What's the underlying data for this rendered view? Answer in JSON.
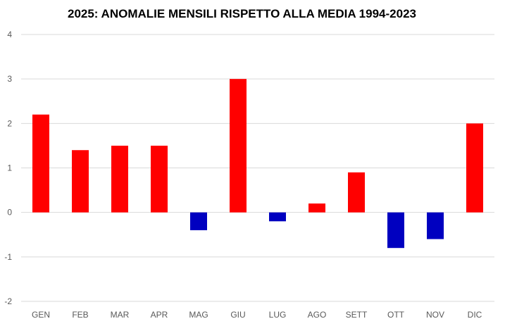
{
  "chart_data": {
    "type": "bar",
    "title": "2025: ANOMALIE MENSILI RISPETTO ALLA MEDIA 1994-2023",
    "categories": [
      "GEN",
      "FEB",
      "MAR",
      "APR",
      "MAG",
      "GIU",
      "LUG",
      "AGO",
      "SETT",
      "OTT",
      "NOV",
      "DIC"
    ],
    "values": [
      2.2,
      1.4,
      1.5,
      1.5,
      -0.4,
      3.0,
      -0.2,
      0.2,
      0.9,
      -0.8,
      -0.6,
      2.0
    ],
    "ylim": [
      -2,
      4
    ],
    "yticks": [
      -2,
      -1,
      0,
      1,
      2,
      3,
      4
    ],
    "xlabel": "",
    "ylabel": "",
    "grid": true,
    "colors": {
      "positive": "#ff0000",
      "negative": "#0000c0",
      "grid": "#d9d9d9",
      "text": "#595959"
    }
  }
}
